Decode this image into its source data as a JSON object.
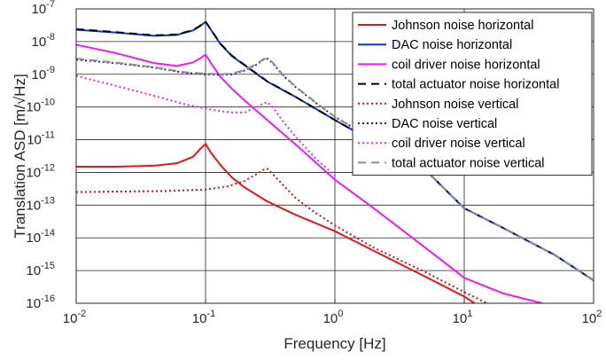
{
  "chart_data": {
    "type": "line",
    "xlabel": "Frequency [Hz]",
    "ylabel": "Translation ASD [m/√Hz]",
    "xscale": "log",
    "yscale": "log",
    "xlim": [
      0.01,
      100
    ],
    "ylim": [
      1e-16,
      1e-07
    ],
    "grid": true,
    "legend_position": "top-right",
    "x_ticks": [
      {
        "base": "10",
        "exp": "-2"
      },
      {
        "base": "10",
        "exp": "-1"
      },
      {
        "base": "10",
        "exp": "0"
      },
      {
        "base": "10",
        "exp": "1"
      },
      {
        "base": "10",
        "exp": "2"
      }
    ],
    "y_ticks": [
      {
        "base": "10",
        "exp": "-16"
      },
      {
        "base": "10",
        "exp": "-15"
      },
      {
        "base": "10",
        "exp": "-14"
      },
      {
        "base": "10",
        "exp": "-13"
      },
      {
        "base": "10",
        "exp": "-12"
      },
      {
        "base": "10",
        "exp": "-11"
      },
      {
        "base": "10",
        "exp": "-10"
      },
      {
        "base": "10",
        "exp": "-9"
      },
      {
        "base": "10",
        "exp": "-8"
      },
      {
        "base": "10",
        "exp": "-7"
      }
    ],
    "series": [
      {
        "name": "Johnson noise horizontal",
        "color": "#e8141c",
        "dash": "solid",
        "x": [
          0.01,
          0.02,
          0.04,
          0.06,
          0.08,
          0.09,
          0.1,
          0.11,
          0.13,
          0.16,
          0.2,
          0.3,
          0.5,
          1,
          2,
          5,
          10,
          12
        ],
        "y": [
          1.5e-12,
          1.5e-12,
          1.6e-12,
          1.9e-12,
          3e-12,
          5e-12,
          7.5e-12,
          4e-12,
          1.7e-12,
          7e-13,
          3.5e-13,
          1.3e-13,
          5e-14,
          1.6e-14,
          4e-15,
          6.5e-16,
          1.6e-16,
          1e-16
        ]
      },
      {
        "name": "DAC noise horizontal",
        "color": "#1530d6",
        "dash": "solid",
        "x": [
          0.01,
          0.02,
          0.04,
          0.06,
          0.08,
          0.09,
          0.1,
          0.11,
          0.13,
          0.16,
          0.2,
          0.3,
          0.5,
          1,
          2,
          5,
          10,
          20,
          50,
          100
        ],
        "y": [
          2.3e-08,
          1.9e-08,
          1.5e-08,
          1.6e-08,
          2.2e-08,
          2.9e-08,
          4e-08,
          2.3e-08,
          8.5e-09,
          3.6e-09,
          1.9e-09,
          6e-10,
          2e-10,
          4e-11,
          8.5e-12,
          1.2e-12,
          8e-14,
          2e-14,
          3e-15,
          5e-16
        ]
      },
      {
        "name": "coil driver noise horizontal",
        "color": "#ee1cee",
        "dash": "solid",
        "x": [
          0.01,
          0.02,
          0.04,
          0.06,
          0.08,
          0.09,
          0.1,
          0.11,
          0.13,
          0.16,
          0.2,
          0.3,
          0.5,
          1,
          2,
          5,
          10,
          20,
          40
        ],
        "y": [
          8e-09,
          4.5e-09,
          2.2e-09,
          1.8e-09,
          2.3e-09,
          3e-09,
          4e-09,
          2.2e-09,
          8.5e-10,
          3.6e-10,
          1.6e-10,
          4e-11,
          7e-12,
          6e-13,
          8e-14,
          5e-15,
          6e-16,
          2e-16,
          1e-16
        ]
      },
      {
        "name": "total actuator noise horizontal",
        "color": "#000000",
        "dash": "dashed",
        "x": [
          0.01,
          0.02,
          0.04,
          0.06,
          0.08,
          0.09,
          0.1,
          0.11,
          0.13,
          0.16,
          0.2,
          0.3,
          0.5,
          1,
          2,
          5,
          10,
          20,
          50,
          100
        ],
        "y": [
          2.4e-08,
          1.95e-08,
          1.55e-08,
          1.65e-08,
          2.25e-08,
          3e-08,
          4.1e-08,
          2.35e-08,
          8.7e-09,
          3.7e-09,
          1.95e-09,
          6.1e-10,
          2e-10,
          4e-11,
          8.5e-12,
          1.2e-12,
          8e-14,
          2e-14,
          3e-15,
          5e-16
        ]
      },
      {
        "name": "Johnson noise vertical",
        "color": "#c8141a",
        "dash": "dotted",
        "x": [
          0.01,
          0.02,
          0.05,
          0.1,
          0.15,
          0.2,
          0.25,
          0.28,
          0.3,
          0.33,
          0.4,
          0.5,
          0.7,
          1,
          2,
          5,
          10,
          15
        ],
        "y": [
          2.5e-13,
          2.6e-13,
          2.7e-13,
          3e-13,
          3.8e-13,
          5.5e-13,
          9e-13,
          1.2e-12,
          1.3e-12,
          9e-13,
          4e-13,
          1.6e-13,
          6e-14,
          2.4e-14,
          5e-15,
          9e-16,
          2.2e-16,
          1e-16
        ]
      },
      {
        "name": "DAC noise vertical",
        "color": "#1a1ac8",
        "dash": "dotted",
        "x": [
          0.01,
          0.02,
          0.04,
          0.07,
          0.1,
          0.13,
          0.16,
          0.2,
          0.25,
          0.28,
          0.3,
          0.33,
          0.4,
          0.5,
          0.7,
          1,
          2,
          5,
          10,
          20,
          50,
          100
        ],
        "y": [
          2.8e-09,
          2.2e-09,
          1.6e-09,
          1.1e-09,
          1e-09,
          9.6e-10,
          1e-09,
          1.3e-09,
          2e-09,
          2.8e-09,
          3e-09,
          2.2e-09,
          9e-10,
          4e-10,
          1.4e-10,
          5e-11,
          1e-11,
          1.2e-12,
          8e-14,
          2e-14,
          3e-15,
          5e-16
        ]
      },
      {
        "name": "coil driver noise vertical",
        "color": "#dd33dd",
        "dash": "dotted",
        "x": [
          0.01,
          0.02,
          0.04,
          0.07,
          0.1,
          0.13,
          0.16,
          0.2,
          0.25,
          0.28,
          0.3,
          0.33,
          0.4,
          0.5,
          0.7,
          1
        ],
        "y": [
          9e-10,
          4.5e-10,
          2.2e-10,
          1.2e-10,
          9e-11,
          7.5e-11,
          6.8e-11,
          6.8e-11,
          1e-10,
          1.3e-10,
          1.4e-10,
          1e-10,
          3.5e-11,
          1.2e-11,
          2.8e-12,
          8e-13
        ]
      },
      {
        "name": "total actuator noise vertical",
        "color": "#8c8c8c",
        "dash": "dashed",
        "x": [
          0.01,
          0.02,
          0.04,
          0.07,
          0.1,
          0.13,
          0.16,
          0.2,
          0.25,
          0.28,
          0.3,
          0.33,
          0.4,
          0.5,
          0.7,
          1,
          2,
          5,
          10,
          20,
          50,
          100
        ],
        "y": [
          3e-09,
          2.3e-09,
          1.65e-09,
          1.15e-09,
          1.05e-09,
          1e-09,
          1.05e-09,
          1.35e-09,
          2.1e-09,
          2.9e-09,
          3.1e-09,
          2.3e-09,
          9.3e-10,
          4.1e-10,
          1.45e-10,
          5e-11,
          1e-11,
          1.2e-12,
          8e-14,
          2e-14,
          3e-15,
          5e-16
        ]
      }
    ]
  }
}
